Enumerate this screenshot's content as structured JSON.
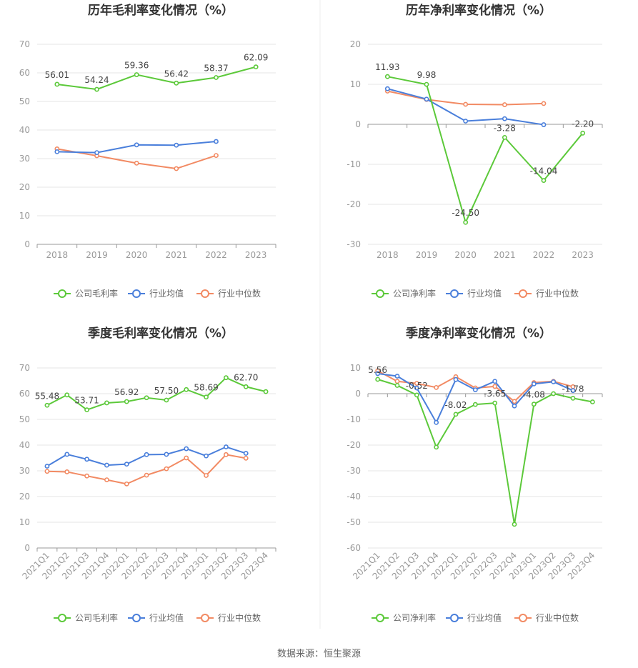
{
  "colors": {
    "company": "#5cc93a",
    "avg": "#4a7fdb",
    "median": "#f28a63",
    "grid": "#e6e6e6",
    "axis": "#999999"
  },
  "source": "数据来源：恒生聚源",
  "chart_data": [
    {
      "type": "line",
      "title": "历年毛利率变化情况（%）",
      "categories": [
        "2018",
        "2019",
        "2020",
        "2021",
        "2022",
        "2023"
      ],
      "ylim": [
        0,
        70
      ],
      "yticks": [
        0,
        10,
        20,
        30,
        40,
        50,
        60,
        70
      ],
      "x_rotated": false,
      "series": [
        {
          "name": "公司毛利率",
          "color": "#5cc93a",
          "values": [
            56.01,
            54.24,
            59.36,
            56.42,
            58.37,
            62.09
          ],
          "labels": [
            "56.01",
            "54.24",
            "59.36",
            "56.42",
            "58.37",
            "62.09"
          ]
        },
        {
          "name": "行业均值",
          "color": "#4a7fdb",
          "values": [
            32.4,
            32.1,
            34.8,
            34.7,
            36.0,
            null
          ],
          "labels": []
        },
        {
          "name": "行业中位数",
          "color": "#f28a63",
          "values": [
            33.4,
            31.0,
            28.4,
            26.5,
            31.1,
            null
          ],
          "labels": []
        }
      ]
    },
    {
      "type": "line",
      "title": "历年净利率变化情况（%）",
      "categories": [
        "2018",
        "2019",
        "2020",
        "2021",
        "2022",
        "2023"
      ],
      "ylim": [
        -30,
        20
      ],
      "yticks": [
        -30,
        -20,
        -10,
        0,
        10,
        20
      ],
      "x_rotated": false,
      "series": [
        {
          "name": "公司净利率",
          "color": "#5cc93a",
          "values": [
            11.93,
            9.98,
            -24.5,
            -3.28,
            -14.04,
            -2.2
          ],
          "labels": [
            "11.93",
            "9.98",
            "-24.50",
            "-3.28",
            "-14.04",
            "-2.20"
          ]
        },
        {
          "name": "行业均值",
          "color": "#4a7fdb",
          "values": [
            8.9,
            6.3,
            0.8,
            1.4,
            -0.1,
            null
          ],
          "labels": []
        },
        {
          "name": "行业中位数",
          "color": "#f28a63",
          "values": [
            8.3,
            6.2,
            5.0,
            4.9,
            5.2,
            null
          ],
          "labels": []
        }
      ]
    },
    {
      "type": "line",
      "title": "季度毛利率变化情况（%）",
      "categories": [
        "2021Q1",
        "2021Q2",
        "2021Q3",
        "2021Q4",
        "2022Q1",
        "2022Q2",
        "2022Q3",
        "2022Q4",
        "2023Q1",
        "2023Q2",
        "2023Q3",
        "2023Q4"
      ],
      "ylim": [
        0,
        70
      ],
      "yticks": [
        0,
        10,
        20,
        30,
        40,
        50,
        60,
        70
      ],
      "x_rotated": true,
      "series": [
        {
          "name": "公司毛利率",
          "color": "#5cc93a",
          "values": [
            55.48,
            59.5,
            53.71,
            56.4,
            56.92,
            58.4,
            57.5,
            61.6,
            58.69,
            66.2,
            62.7,
            60.8
          ],
          "labels": [
            "55.48",
            "",
            "53.71",
            "",
            "56.92",
            "",
            "57.50",
            "",
            "58.69",
            "",
            "62.70",
            ""
          ]
        },
        {
          "name": "行业均值",
          "color": "#4a7fdb",
          "values": [
            31.8,
            36.4,
            34.5,
            32.2,
            32.6,
            36.3,
            36.4,
            38.6,
            35.8,
            39.3,
            36.8,
            null
          ],
          "labels": []
        },
        {
          "name": "行业中位数",
          "color": "#f28a63",
          "values": [
            29.8,
            29.6,
            28.0,
            26.5,
            24.9,
            28.3,
            30.8,
            35.0,
            28.2,
            36.3,
            34.9,
            null
          ],
          "labels": []
        }
      ]
    },
    {
      "type": "line",
      "title": "季度净利率变化情况（%）",
      "categories": [
        "2021Q1",
        "2021Q2",
        "2021Q3",
        "2021Q4",
        "2022Q1",
        "2022Q2",
        "2022Q3",
        "2022Q4",
        "2023Q1",
        "2023Q2",
        "2023Q3",
        "2023Q4"
      ],
      "ylim": [
        -60,
        10
      ],
      "yticks": [
        -60,
        -50,
        -40,
        -30,
        -20,
        -10,
        0,
        10
      ],
      "x_rotated": true,
      "series": [
        {
          "name": "公司净利率",
          "color": "#5cc93a",
          "values": [
            5.56,
            3.2,
            -0.52,
            -20.8,
            -8.02,
            -4.2,
            -3.65,
            -50.8,
            -4.08,
            0.0,
            -1.78,
            -3.2
          ],
          "labels": [
            "5.56",
            "",
            "-0.52",
            "",
            "-8.02",
            "",
            "-3.65",
            "",
            "-4.08",
            "",
            "-1.78",
            ""
          ]
        },
        {
          "name": "行业均值",
          "color": "#4a7fdb",
          "values": [
            7.8,
            6.8,
            2.2,
            -11.2,
            5.5,
            1.5,
            4.8,
            -4.8,
            3.8,
            4.6,
            1.2,
            null
          ],
          "labels": []
        },
        {
          "name": "行业中位数",
          "color": "#f28a63",
          "values": [
            8.9,
            4.8,
            4.0,
            2.4,
            6.6,
            2.2,
            2.8,
            -3.0,
            4.3,
            4.8,
            2.7,
            null
          ],
          "labels": []
        }
      ]
    }
  ]
}
